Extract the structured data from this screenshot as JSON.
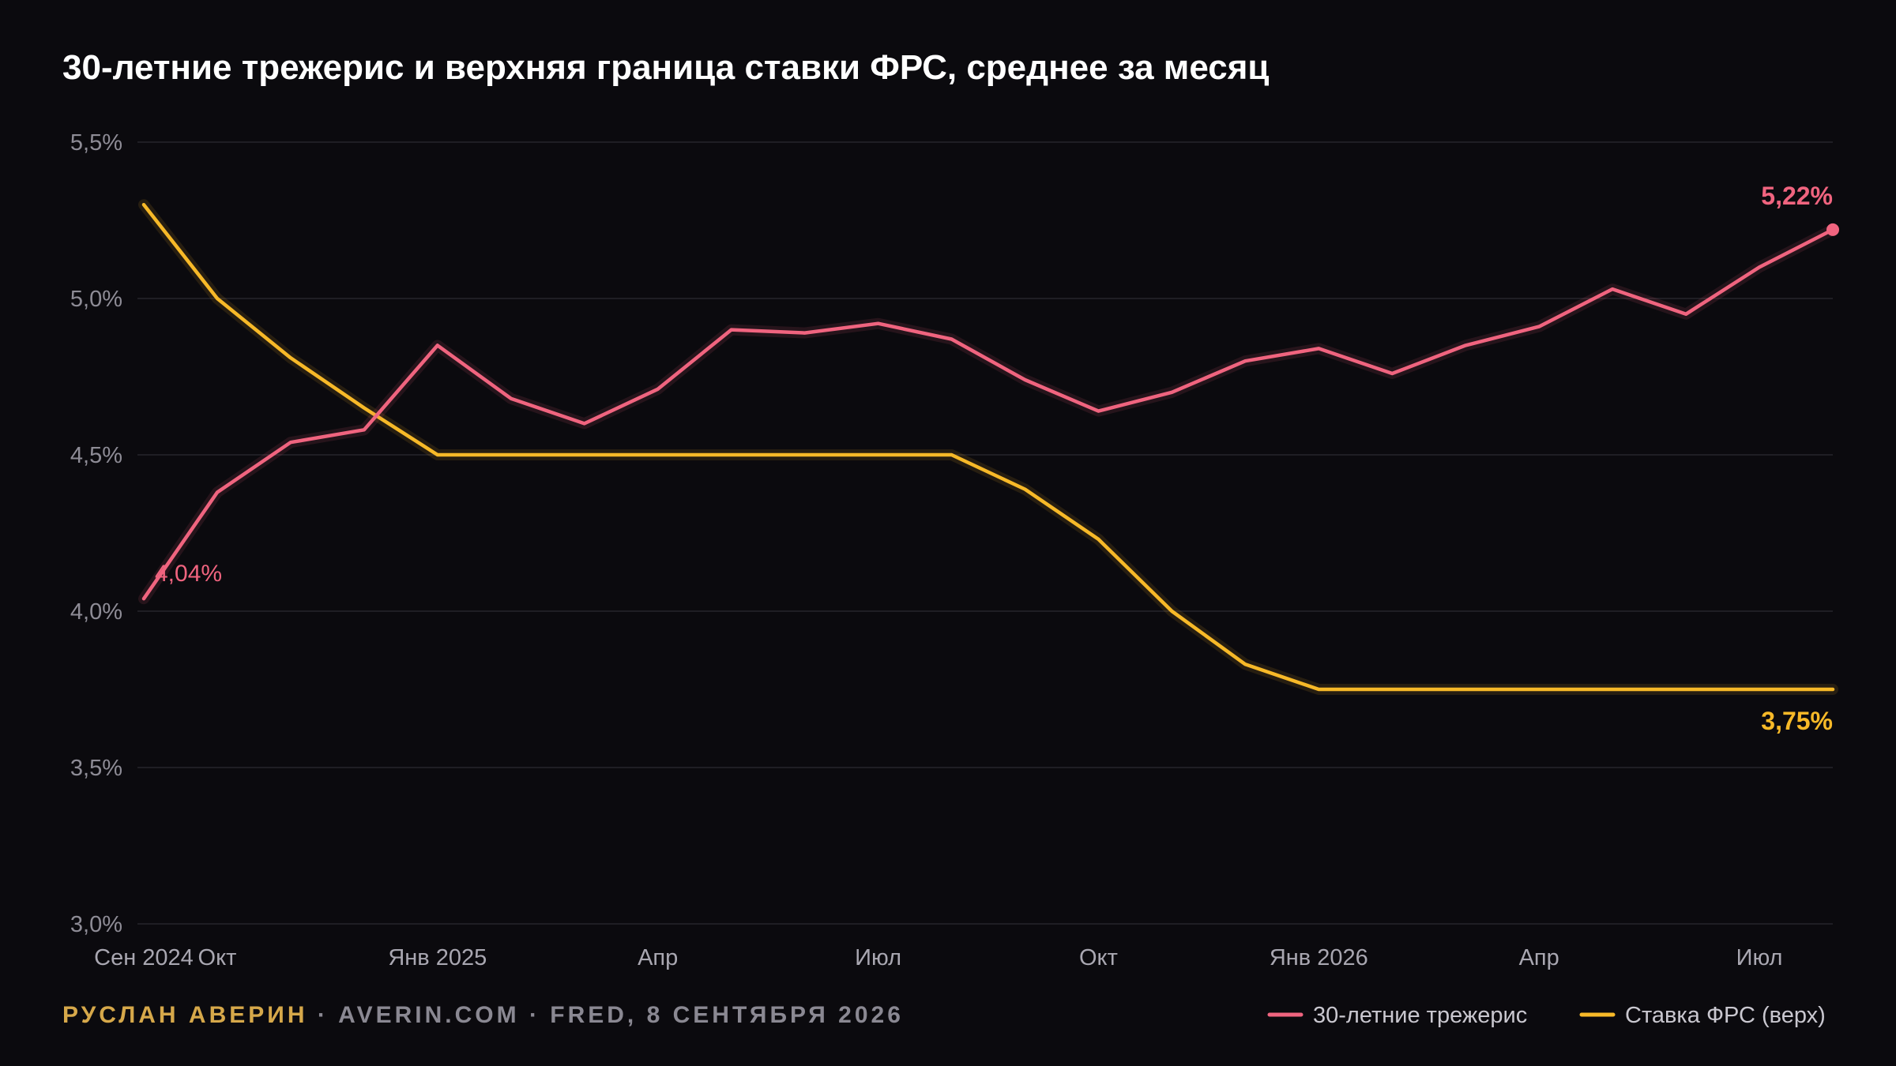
{
  "colors": {
    "background": "#0b0a0e",
    "treasury": "#f0647f",
    "fed": "#f7b928",
    "author": "#d6a84a",
    "source": "#8a8892"
  },
  "credit": {
    "author": "РУСЛАН АВЕРИН",
    "rest": " · AVERIN.COM · FRED, 8 СЕНТЯБРЯ 2026"
  },
  "chart_data": {
    "type": "line",
    "title": "30-летние трежерис и верхняя граница ставки ФРС, среднее за месяц",
    "xlabel": "",
    "ylabel": "",
    "ylim": [
      3.0,
      5.5
    ],
    "y_ticks": [
      {
        "value": 3.0,
        "label": "3,0%"
      },
      {
        "value": 3.5,
        "label": "3,5%"
      },
      {
        "value": 4.0,
        "label": "4,0%"
      },
      {
        "value": 4.5,
        "label": "4,5%"
      },
      {
        "value": 5.0,
        "label": "5,0%"
      },
      {
        "value": 5.5,
        "label": "5,5%"
      }
    ],
    "x": [
      "2024-09",
      "2024-10",
      "2024-11",
      "2024-12",
      "2025-01",
      "2025-02",
      "2025-03",
      "2025-04",
      "2025-05",
      "2025-06",
      "2025-07",
      "2025-08",
      "2025-09",
      "2025-10",
      "2025-11",
      "2025-12",
      "2026-01",
      "2026-02",
      "2026-03",
      "2026-04",
      "2026-05",
      "2026-06",
      "2026-07",
      "2026-08"
    ],
    "x_ticks": [
      {
        "index": 0,
        "label": "Сен 2024"
      },
      {
        "index": 1,
        "label": "Окт"
      },
      {
        "index": 4,
        "label": "Янв 2025"
      },
      {
        "index": 7,
        "label": "Апр"
      },
      {
        "index": 10,
        "label": "Июл"
      },
      {
        "index": 13,
        "label": "Окт"
      },
      {
        "index": 16,
        "label": "Янв 2026"
      },
      {
        "index": 19,
        "label": "Апр"
      },
      {
        "index": 22,
        "label": "Июл"
      }
    ],
    "series": [
      {
        "name": "30-летние трежерис",
        "color": "#f0647f",
        "values": [
          4.04,
          4.38,
          4.54,
          4.58,
          4.85,
          4.68,
          4.6,
          4.71,
          4.9,
          4.89,
          4.92,
          4.87,
          4.74,
          4.64,
          4.7,
          4.8,
          4.84,
          4.76,
          4.85,
          4.91,
          5.03,
          4.95,
          5.1,
          5.22
        ],
        "start_label": "4,04%",
        "end_label": "5,22%"
      },
      {
        "name": "Ставка ФРС (верх)",
        "color": "#f7b928",
        "values": [
          5.3,
          5.0,
          4.81,
          4.65,
          4.5,
          4.5,
          4.5,
          4.5,
          4.5,
          4.5,
          4.5,
          4.5,
          4.39,
          4.23,
          4.0,
          3.83,
          3.75,
          3.75,
          3.75,
          3.75,
          3.75,
          3.75,
          3.75,
          3.75
        ],
        "end_label": "3,75%"
      }
    ],
    "legend": "bottom-right",
    "grid": true
  }
}
